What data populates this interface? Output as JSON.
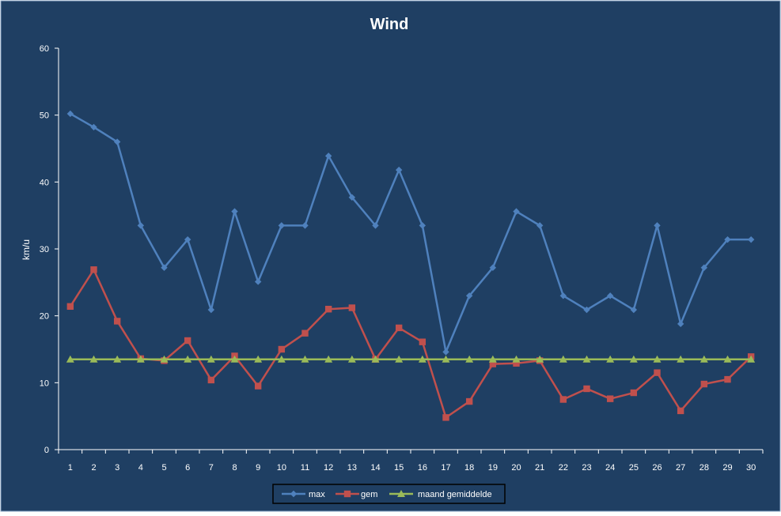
{
  "chart_data": {
    "type": "line",
    "title": "Wind",
    "ylabel": "km/u",
    "xlabel": "",
    "ylim": [
      0,
      60
    ],
    "yticks": [
      0,
      10,
      20,
      30,
      40,
      50,
      60
    ],
    "categories": [
      "1",
      "2",
      "3",
      "4",
      "5",
      "6",
      "7",
      "8",
      "9",
      "10",
      "11",
      "12",
      "13",
      "14",
      "15",
      "16",
      "17",
      "18",
      "19",
      "20",
      "21",
      "22",
      "23",
      "24",
      "25",
      "26",
      "27",
      "28",
      "29",
      "30"
    ],
    "grid": false,
    "legend_position": "bottom",
    "series": [
      {
        "name": "max",
        "color": "#4F81BD",
        "marker": "diamond",
        "values": [
          50.2,
          48.2,
          46.0,
          33.5,
          27.2,
          31.4,
          20.9,
          35.6,
          25.1,
          33.5,
          33.5,
          43.9,
          37.7,
          33.5,
          41.8,
          33.5,
          14.6,
          23.0,
          27.2,
          35.6,
          33.5,
          23.0,
          20.9,
          23.0,
          20.9,
          33.5,
          18.8,
          27.2,
          31.4,
          31.4
        ]
      },
      {
        "name": "gem",
        "color": "#C0504D",
        "marker": "square",
        "values": [
          21.4,
          26.9,
          19.2,
          13.6,
          13.3,
          16.3,
          10.4,
          14.0,
          9.5,
          15.0,
          17.4,
          21.0,
          21.2,
          13.5,
          18.2,
          16.1,
          4.8,
          7.2,
          12.8,
          12.9,
          13.3,
          7.5,
          9.1,
          7.6,
          8.5,
          11.5,
          5.8,
          9.8,
          10.5,
          13.9
        ]
      },
      {
        "name": "maand gemiddelde",
        "color": "#9BBB59",
        "marker": "triangle",
        "values": [
          13.5,
          13.5,
          13.5,
          13.5,
          13.5,
          13.5,
          13.5,
          13.5,
          13.5,
          13.5,
          13.5,
          13.5,
          13.5,
          13.5,
          13.5,
          13.5,
          13.5,
          13.5,
          13.5,
          13.5,
          13.5,
          13.5,
          13.5,
          13.5,
          13.5,
          13.5,
          13.5,
          13.5,
          13.5,
          13.5
        ]
      }
    ],
    "colors": {
      "background": "#1F3F63",
      "frame": "#8EA9C8",
      "axis": "#FFFFFF"
    }
  }
}
